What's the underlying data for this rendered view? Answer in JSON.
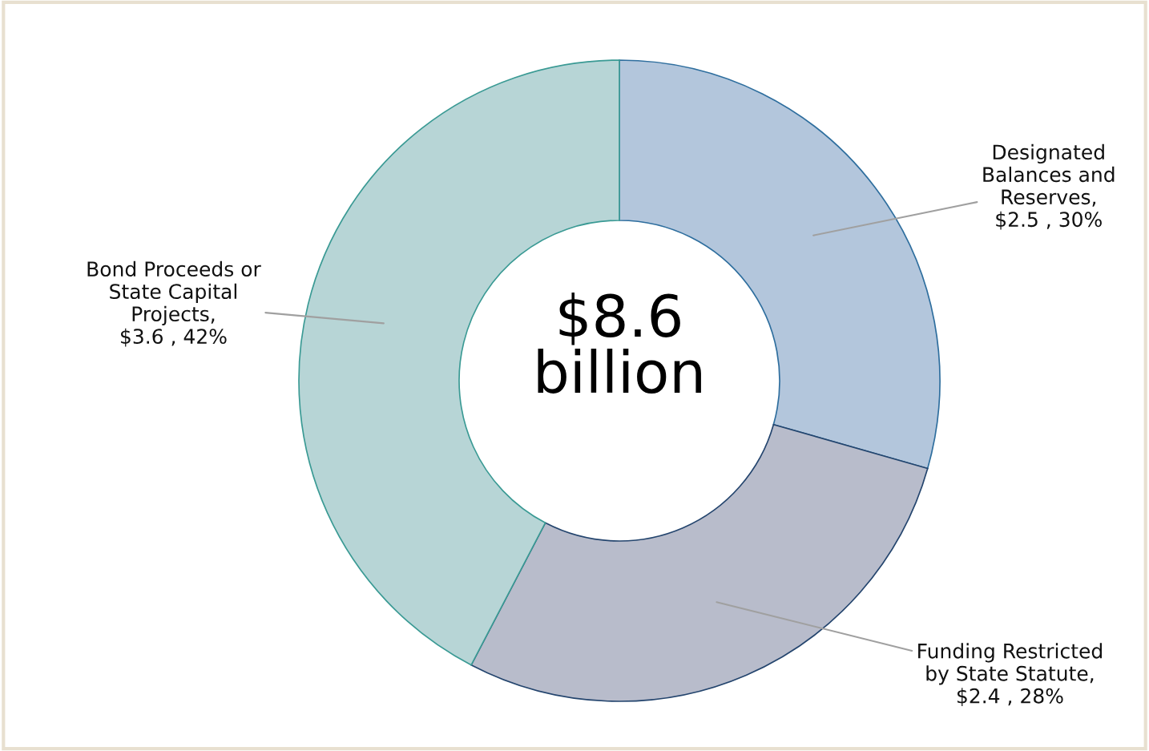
{
  "chart_data": {
    "type": "donut",
    "categories": [
      "Designated Balances and Reserves",
      "Funding Restricted by State Statute",
      "Bond Proceeds or State Capital Projects"
    ],
    "values": [
      2.5,
      2.4,
      3.6
    ],
    "value_labels": [
      ", $2.5 , 30%",
      ", $2.4 , 28%",
      ", $3.6 , 42%"
    ],
    "colors": [
      "#b3c6dc",
      "#b8bccb",
      "#b7d5d6"
    ],
    "annotations": [
      "$8.6 billion"
    ],
    "legend": false
  }
}
